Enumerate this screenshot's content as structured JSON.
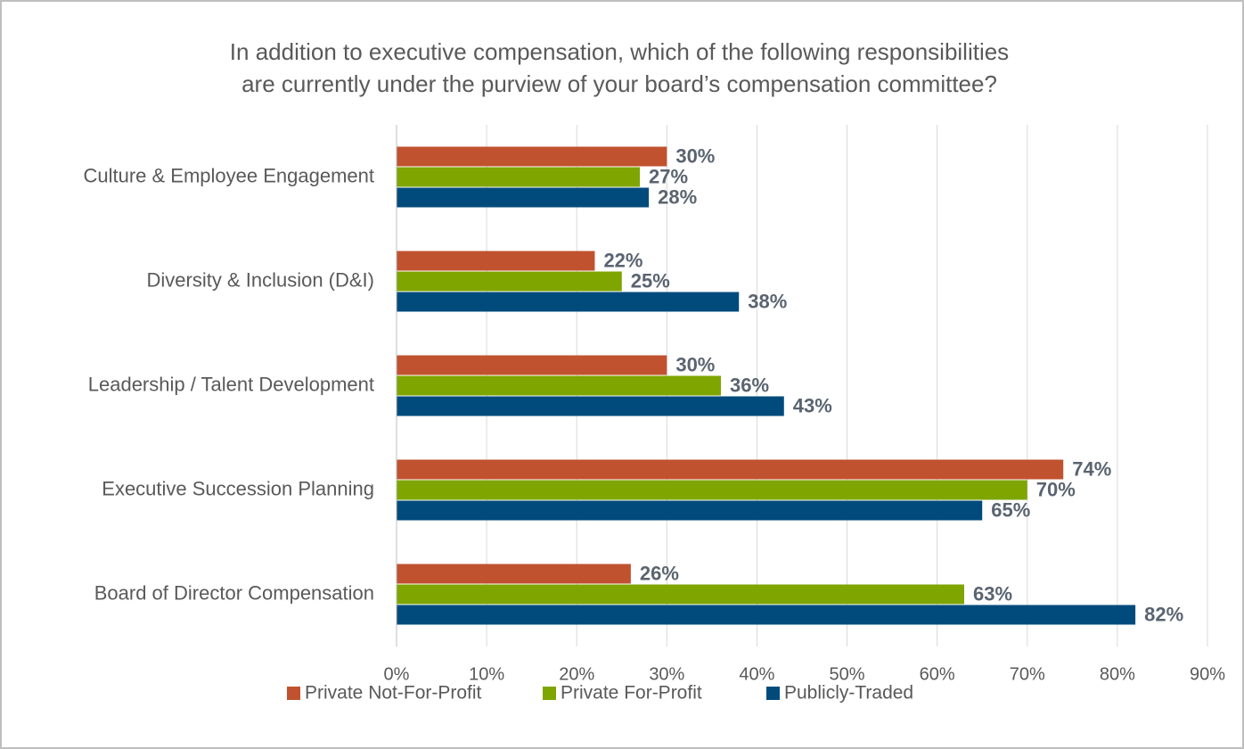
{
  "chart_data": {
    "type": "barh",
    "title": [
      "In addition to executive compensation, which of the following responsibilities",
      "are currently under the purview of your board’s compensation committee?"
    ],
    "categories": [
      "Culture & Employee Engagement",
      "Diversity & Inclusion (D&I)",
      "Leadership / Talent Development",
      "Executive Succession Planning",
      "Board of Director Compensation"
    ],
    "series": [
      {
        "name": "Private Not-For-Profit",
        "color": "#c0522f",
        "values": [
          30,
          22,
          30,
          74,
          26
        ],
        "value_labels": [
          "30%",
          "22%",
          "30%",
          "74%",
          "26%"
        ]
      },
      {
        "name": "Private For-Profit",
        "color": "#7ea500",
        "values": [
          27,
          25,
          36,
          70,
          63
        ],
        "value_labels": [
          "27%",
          "25%",
          "36%",
          "70%",
          "63%"
        ]
      },
      {
        "name": "Publicly-Traded",
        "color": "#004b7c",
        "values": [
          28,
          38,
          43,
          65,
          82
        ],
        "value_labels": [
          "28%",
          "38%",
          "43%",
          "65%",
          "82%"
        ]
      }
    ],
    "xlim": [
      0,
      90
    ],
    "xticks": [
      {
        "value": 0,
        "label": "0%"
      },
      {
        "value": 10,
        "label": "10%"
      },
      {
        "value": 20,
        "label": "20%"
      },
      {
        "value": 30,
        "label": "30%"
      },
      {
        "value": 40,
        "label": "40%"
      },
      {
        "value": 50,
        "label": "50%"
      },
      {
        "value": 60,
        "label": "60%"
      },
      {
        "value": 70,
        "label": "70%"
      },
      {
        "value": 80,
        "label": "80%"
      },
      {
        "value": 90,
        "label": "90%"
      }
    ],
    "grid": true,
    "legend": "bottom"
  }
}
